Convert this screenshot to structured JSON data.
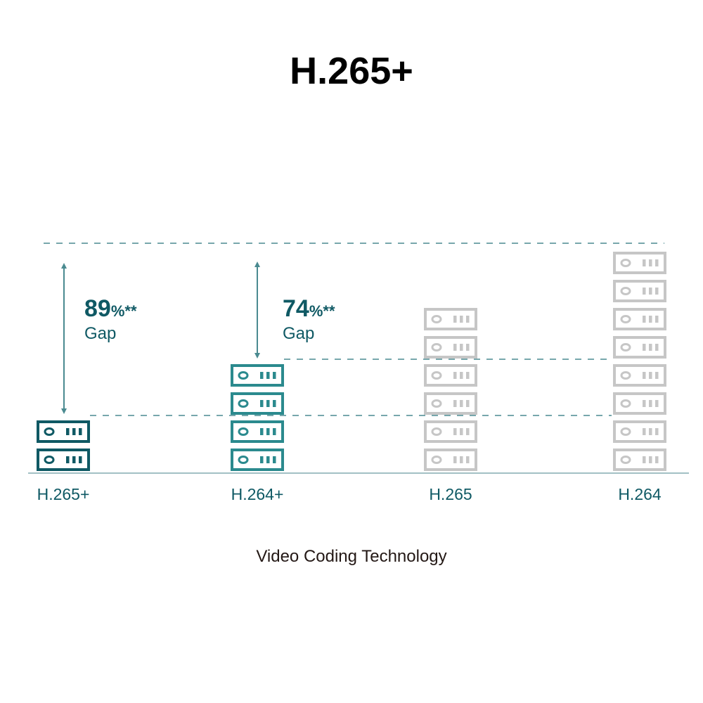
{
  "chart_data": {
    "type": "bar",
    "title": "H.265+",
    "xlabel": "Video Coding Technology",
    "ylabel": "",
    "categories": [
      "H.265+",
      "H.264+",
      "H.265",
      "H.264"
    ],
    "values": [
      2,
      4,
      6,
      8
    ],
    "ylim": [
      0,
      8
    ],
    "mark": "server-icon",
    "colors": [
      "#0f5964",
      "#2b8a8e",
      "#c6c6c6",
      "#c6c6c6"
    ],
    "annotations": [
      {
        "category": "H.265+",
        "value": "89",
        "unit": "%**",
        "label": "Gap"
      },
      {
        "category": "H.264+",
        "value": "74",
        "unit": "%**",
        "label": "Gap"
      }
    ],
    "reference_line_color": "#4a8a90",
    "grid": false
  }
}
